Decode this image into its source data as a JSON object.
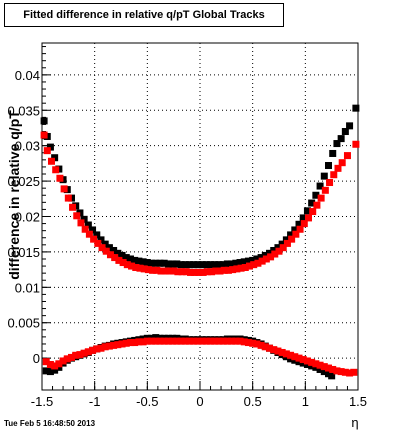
{
  "chart_data": {
    "type": "scatter",
    "title": "Fitted difference in relative q/pT  Global Tracks",
    "xlabel": "η",
    "ylabel": "difference in relative q/pT",
    "xlim": [
      -1.5,
      1.5
    ],
    "ylim": [
      -0.0045,
      0.0445
    ],
    "x_ticks": [
      -1.5,
      -1,
      -0.5,
      0,
      0.5,
      1,
      1.5
    ],
    "x_tick_labels": [
      "-1.5",
      "-1",
      "-0.5",
      "0",
      "0.5",
      "1",
      "1.5"
    ],
    "y_ticks": [
      0,
      0.005,
      0.01,
      0.015,
      0.02,
      0.025,
      0.03,
      0.035,
      0.04
    ],
    "y_tick_labels": [
      "0",
      "0.005",
      "0.01",
      "0.015",
      "0.02",
      "0.025",
      "0.03",
      "0.035",
      "0.04"
    ],
    "grid": true,
    "series": [
      {
        "color": "#000000",
        "marker": "square",
        "points": [
          [
            -1.48,
            0.0335
          ],
          [
            -1.45,
            0.0313
          ],
          [
            -1.42,
            0.0298
          ],
          [
            -1.38,
            0.0283
          ],
          [
            -1.34,
            0.0267
          ],
          [
            -1.3,
            0.0252
          ],
          [
            -1.26,
            0.0238
          ],
          [
            -1.22,
            0.0226
          ],
          [
            -1.18,
            0.0215
          ],
          [
            -1.14,
            0.0205
          ],
          [
            -1.1,
            0.0196
          ],
          [
            -1.06,
            0.0188
          ],
          [
            -1.02,
            0.0181
          ],
          [
            -0.98,
            0.0174
          ],
          [
            -0.94,
            0.0167
          ],
          [
            -0.9,
            0.0161
          ],
          [
            -0.86,
            0.0156
          ],
          [
            -0.82,
            0.0152
          ],
          [
            -0.78,
            0.0148
          ],
          [
            -0.74,
            0.0145
          ],
          [
            -0.7,
            0.0142
          ],
          [
            -0.66,
            0.014
          ],
          [
            -0.62,
            0.0138
          ],
          [
            -0.58,
            0.0137
          ],
          [
            -0.54,
            0.0136
          ],
          [
            -0.5,
            0.0135
          ],
          [
            -0.46,
            0.0134
          ],
          [
            -0.42,
            0.0134
          ],
          [
            -0.38,
            0.0134
          ],
          [
            -0.34,
            0.0134
          ],
          [
            -0.3,
            0.0133
          ],
          [
            -0.26,
            0.0133
          ],
          [
            -0.22,
            0.0133
          ],
          [
            -0.18,
            0.0132
          ],
          [
            -0.14,
            0.0132
          ],
          [
            -0.1,
            0.0132
          ],
          [
            -0.06,
            0.0132
          ],
          [
            -0.02,
            0.0132
          ],
          [
            0.02,
            0.0132
          ],
          [
            0.06,
            0.0132
          ],
          [
            0.1,
            0.0132
          ],
          [
            0.14,
            0.0132
          ],
          [
            0.18,
            0.0132
          ],
          [
            0.22,
            0.0132
          ],
          [
            0.26,
            0.0133
          ],
          [
            0.3,
            0.0133
          ],
          [
            0.34,
            0.0134
          ],
          [
            0.38,
            0.0135
          ],
          [
            0.42,
            0.0136
          ],
          [
            0.46,
            0.0137
          ],
          [
            0.5,
            0.0138
          ],
          [
            0.54,
            0.014
          ],
          [
            0.58,
            0.0142
          ],
          [
            0.62,
            0.0145
          ],
          [
            0.66,
            0.0148
          ],
          [
            0.7,
            0.0152
          ],
          [
            0.74,
            0.0156
          ],
          [
            0.78,
            0.0161
          ],
          [
            0.82,
            0.0167
          ],
          [
            0.86,
            0.0174
          ],
          [
            0.9,
            0.0181
          ],
          [
            0.94,
            0.0189
          ],
          [
            0.98,
            0.0198
          ],
          [
            1.02,
            0.0208
          ],
          [
            1.06,
            0.0219
          ],
          [
            1.1,
            0.023
          ],
          [
            1.14,
            0.0243
          ],
          [
            1.18,
            0.0257
          ],
          [
            1.22,
            0.0272
          ],
          [
            1.26,
            0.0289
          ],
          [
            1.3,
            0.0303
          ],
          [
            1.34,
            0.031
          ],
          [
            1.38,
            0.032
          ],
          [
            1.42,
            0.0328
          ],
          [
            1.48,
            0.0353
          ],
          [
            -1.46,
            -0.0018
          ],
          [
            -1.42,
            -0.0019
          ],
          [
            -1.38,
            -0.0017
          ],
          [
            -1.34,
            -0.0013
          ],
          [
            -1.3,
            -0.0007
          ],
          [
            -1.26,
            -0.0003
          ],
          [
            -1.22,
            0.0
          ],
          [
            -1.18,
            0.0002
          ],
          [
            -1.14,
            0.0004
          ],
          [
            -1.1,
            0.0006
          ],
          [
            -1.06,
            0.0008
          ],
          [
            -1.02,
            0.0011
          ],
          [
            -0.98,
            0.0013
          ],
          [
            -0.94,
            0.0015
          ],
          [
            -0.9,
            0.0017
          ],
          [
            -0.86,
            0.0018
          ],
          [
            -0.82,
            0.002
          ],
          [
            -0.78,
            0.0021
          ],
          [
            -0.74,
            0.0022
          ],
          [
            -0.7,
            0.0023
          ],
          [
            -0.66,
            0.0024
          ],
          [
            -0.62,
            0.0025
          ],
          [
            -0.58,
            0.0026
          ],
          [
            -0.54,
            0.0027
          ],
          [
            -0.5,
            0.0028
          ],
          [
            -0.46,
            0.0028
          ],
          [
            -0.42,
            0.0029
          ],
          [
            -0.38,
            0.0028
          ],
          [
            -0.34,
            0.0028
          ],
          [
            -0.3,
            0.0028
          ],
          [
            -0.26,
            0.0028
          ],
          [
            -0.22,
            0.0028
          ],
          [
            -0.18,
            0.0027
          ],
          [
            -0.14,
            0.0027
          ],
          [
            -0.1,
            0.0026
          ],
          [
            -0.06,
            0.0026
          ],
          [
            -0.02,
            0.0026
          ],
          [
            0.02,
            0.0026
          ],
          [
            0.06,
            0.0026
          ],
          [
            0.1,
            0.0026
          ],
          [
            0.14,
            0.0026
          ],
          [
            0.18,
            0.0026
          ],
          [
            0.22,
            0.0026
          ],
          [
            0.26,
            0.0027
          ],
          [
            0.3,
            0.0027
          ],
          [
            0.34,
            0.0027
          ],
          [
            0.38,
            0.0027
          ],
          [
            0.42,
            0.0026
          ],
          [
            0.46,
            0.0025
          ],
          [
            0.5,
            0.0024
          ],
          [
            0.54,
            0.0022
          ],
          [
            0.58,
            0.002
          ],
          [
            0.62,
            0.0017
          ],
          [
            0.66,
            0.0014
          ],
          [
            0.7,
            0.0011
          ],
          [
            0.74,
            0.0008
          ],
          [
            0.78,
            0.0005
          ],
          [
            0.82,
            0.0002
          ],
          [
            0.86,
            -0.0001
          ],
          [
            0.9,
            -0.0003
          ],
          [
            0.94,
            -0.0005
          ],
          [
            0.98,
            -0.0007
          ],
          [
            1.02,
            -0.0009
          ],
          [
            1.06,
            -0.0011
          ],
          [
            1.1,
            -0.0013
          ],
          [
            1.14,
            -0.0016
          ],
          [
            1.18,
            -0.0019
          ],
          [
            1.22,
            -0.0022
          ],
          [
            1.25,
            -0.0025
          ]
        ]
      },
      {
        "color": "#ff0000",
        "marker": "square",
        "points": [
          [
            -1.48,
            0.0315
          ],
          [
            -1.45,
            0.0293
          ],
          [
            -1.41,
            0.0278
          ],
          [
            -1.37,
            0.0266
          ],
          [
            -1.33,
            0.0254
          ],
          [
            -1.29,
            0.0239
          ],
          [
            -1.25,
            0.0226
          ],
          [
            -1.21,
            0.0213
          ],
          [
            -1.17,
            0.0201
          ],
          [
            -1.13,
            0.0191
          ],
          [
            -1.09,
            0.0182
          ],
          [
            -1.05,
            0.0175
          ],
          [
            -1.01,
            0.0168
          ],
          [
            -0.97,
            0.0162
          ],
          [
            -0.93,
            0.0156
          ],
          [
            -0.89,
            0.0151
          ],
          [
            -0.85,
            0.0146
          ],
          [
            -0.81,
            0.0142
          ],
          [
            -0.77,
            0.0138
          ],
          [
            -0.73,
            0.0135
          ],
          [
            -0.69,
            0.0132
          ],
          [
            -0.65,
            0.013
          ],
          [
            -0.61,
            0.0128
          ],
          [
            -0.57,
            0.0127
          ],
          [
            -0.53,
            0.0126
          ],
          [
            -0.49,
            0.0125
          ],
          [
            -0.45,
            0.0124
          ],
          [
            -0.41,
            0.0124
          ],
          [
            -0.37,
            0.0123
          ],
          [
            -0.33,
            0.0123
          ],
          [
            -0.29,
            0.0123
          ],
          [
            -0.25,
            0.0123
          ],
          [
            -0.21,
            0.0122
          ],
          [
            -0.17,
            0.0122
          ],
          [
            -0.13,
            0.0122
          ],
          [
            -0.09,
            0.0121
          ],
          [
            -0.05,
            0.0121
          ],
          [
            -0.01,
            0.0121
          ],
          [
            0.03,
            0.0121
          ],
          [
            0.07,
            0.0122
          ],
          [
            0.11,
            0.0122
          ],
          [
            0.15,
            0.0123
          ],
          [
            0.19,
            0.0123
          ],
          [
            0.23,
            0.0124
          ],
          [
            0.27,
            0.0124
          ],
          [
            0.31,
            0.0125
          ],
          [
            0.35,
            0.0126
          ],
          [
            0.39,
            0.0127
          ],
          [
            0.43,
            0.0128
          ],
          [
            0.47,
            0.013
          ],
          [
            0.51,
            0.0132
          ],
          [
            0.55,
            0.0134
          ],
          [
            0.59,
            0.0137
          ],
          [
            0.63,
            0.014
          ],
          [
            0.67,
            0.0143
          ],
          [
            0.71,
            0.0147
          ],
          [
            0.75,
            0.0151
          ],
          [
            0.79,
            0.0156
          ],
          [
            0.83,
            0.0162
          ],
          [
            0.87,
            0.0168
          ],
          [
            0.91,
            0.0175
          ],
          [
            0.95,
            0.0182
          ],
          [
            0.99,
            0.019
          ],
          [
            1.03,
            0.0198
          ],
          [
            1.07,
            0.0207
          ],
          [
            1.11,
            0.0216
          ],
          [
            1.15,
            0.0226
          ],
          [
            1.19,
            0.0237
          ],
          [
            1.23,
            0.0248
          ],
          [
            1.27,
            0.0259
          ],
          [
            1.31,
            0.0268
          ],
          [
            1.35,
            0.0276
          ],
          [
            1.4,
            0.0286
          ],
          [
            1.48,
            0.0302
          ],
          [
            -1.46,
            -0.0005
          ],
          [
            -1.42,
            -0.0009
          ],
          [
            -1.38,
            -0.0011
          ],
          [
            -1.34,
            -0.0008
          ],
          [
            -1.3,
            -0.0004
          ],
          [
            -1.26,
            -0.0001
          ],
          [
            -1.22,
            0.0001
          ],
          [
            -1.18,
            0.0004
          ],
          [
            -1.14,
            0.0005
          ],
          [
            -1.1,
            0.0007
          ],
          [
            -1.06,
            0.0009
          ],
          [
            -1.02,
            0.0011
          ],
          [
            -0.98,
            0.0013
          ],
          [
            -0.94,
            0.0014
          ],
          [
            -0.9,
            0.0016
          ],
          [
            -0.86,
            0.0017
          ],
          [
            -0.82,
            0.0018
          ],
          [
            -0.78,
            0.0019
          ],
          [
            -0.74,
            0.002
          ],
          [
            -0.7,
            0.0021
          ],
          [
            -0.66,
            0.0022
          ],
          [
            -0.62,
            0.0022
          ],
          [
            -0.58,
            0.0023
          ],
          [
            -0.54,
            0.0023
          ],
          [
            -0.5,
            0.0024
          ],
          [
            -0.46,
            0.0024
          ],
          [
            -0.42,
            0.0024
          ],
          [
            -0.38,
            0.0024
          ],
          [
            -0.34,
            0.0024
          ],
          [
            -0.3,
            0.0024
          ],
          [
            -0.26,
            0.0024
          ],
          [
            -0.22,
            0.0024
          ],
          [
            -0.18,
            0.0024
          ],
          [
            -0.14,
            0.0024
          ],
          [
            -0.1,
            0.0024
          ],
          [
            -0.06,
            0.0024
          ],
          [
            -0.02,
            0.0024
          ],
          [
            0.02,
            0.0024
          ],
          [
            0.06,
            0.0024
          ],
          [
            0.1,
            0.0024
          ],
          [
            0.14,
            0.0024
          ],
          [
            0.18,
            0.0024
          ],
          [
            0.22,
            0.0024
          ],
          [
            0.26,
            0.0024
          ],
          [
            0.3,
            0.0024
          ],
          [
            0.34,
            0.0024
          ],
          [
            0.38,
            0.0024
          ],
          [
            0.42,
            0.0023
          ],
          [
            0.46,
            0.0022
          ],
          [
            0.5,
            0.0021
          ],
          [
            0.54,
            0.002
          ],
          [
            0.58,
            0.0018
          ],
          [
            0.62,
            0.0016
          ],
          [
            0.66,
            0.0014
          ],
          [
            0.7,
            0.0012
          ],
          [
            0.74,
            0.001
          ],
          [
            0.78,
            0.0008
          ],
          [
            0.82,
            0.0006
          ],
          [
            0.86,
            0.0004
          ],
          [
            0.9,
            0.0002
          ],
          [
            0.94,
            0.0
          ],
          [
            0.98,
            -0.0002
          ],
          [
            1.02,
            -0.0004
          ],
          [
            1.06,
            -0.0006
          ],
          [
            1.1,
            -0.0008
          ],
          [
            1.14,
            -0.001
          ],
          [
            1.18,
            -0.0012
          ],
          [
            1.22,
            -0.0014
          ],
          [
            1.26,
            -0.0016
          ],
          [
            1.3,
            -0.0018
          ],
          [
            1.34,
            -0.0019
          ],
          [
            1.38,
            -0.002
          ],
          [
            1.42,
            -0.0021
          ],
          [
            1.46,
            -0.002
          ]
        ]
      }
    ]
  },
  "footer": {
    "timestamp": "Tue Feb  5 16:48:50 2013"
  }
}
